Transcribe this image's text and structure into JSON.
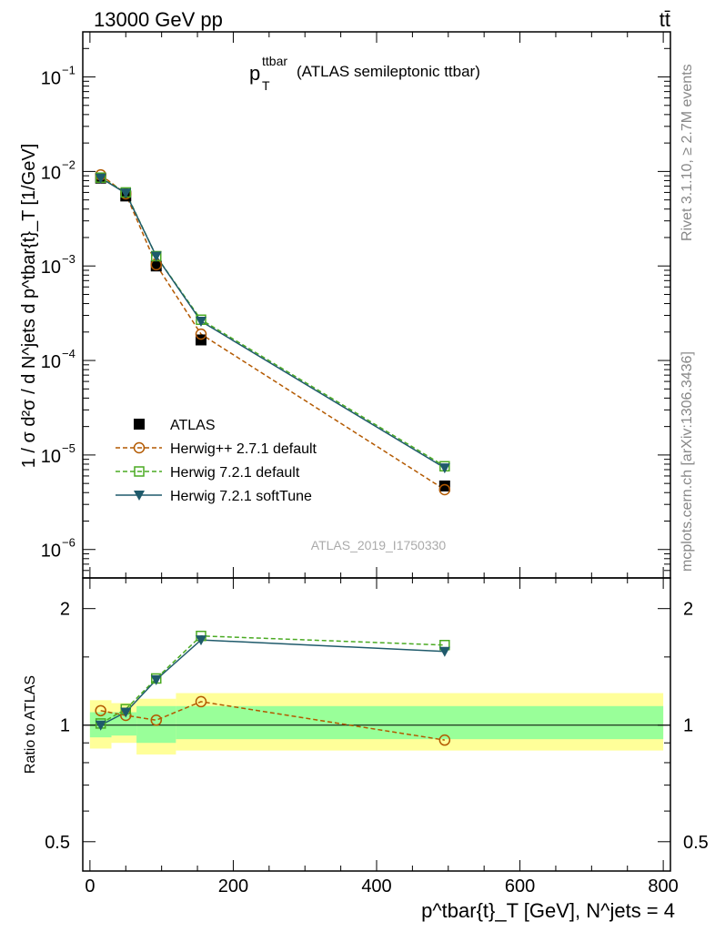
{
  "header": {
    "energy_label": "13000 GeV pp",
    "process_label": "tt̄"
  },
  "side_labels": {
    "rivet": "Rivet 3.1.10, ≥ 2.7M events",
    "mcplots": "mcplots.cern.ch [arXiv:1306.3436]"
  },
  "chart_data": [
    {
      "type": "line",
      "panel": "main",
      "title": "(ATLAS semileptonic ttbar)",
      "title_var": "p",
      "title_sup": "ttbar",
      "title_sub": "T",
      "analysis_id": "ATLAS_2019_I1750330",
      "ylabel": "1 / σ d²σ / d N^jets d p^tbar{t}_T [1/GeV]",
      "log_y": true,
      "ylim": [
        5e-07,
        0.3
      ],
      "xlim": [
        -10,
        810
      ],
      "x_ticks": [
        0,
        200,
        400,
        600,
        800
      ],
      "y_ticks": [
        1e-06,
        1e-05,
        0.0001,
        0.001,
        0.01,
        0.1
      ],
      "y_tick_labels": [
        {
          "base": "10",
          "exp": "−6"
        },
        {
          "base": "10",
          "exp": "−5"
        },
        {
          "base": "10",
          "exp": "−4"
        },
        {
          "base": "10",
          "exp": "−3"
        },
        {
          "base": "10",
          "exp": "−2"
        },
        {
          "base": "10",
          "exp": "−1"
        }
      ],
      "legend_position": "lower-left",
      "x": [
        15,
        50,
        92.5,
        155,
        495
      ],
      "bin_edges": [
        0,
        30,
        65,
        120,
        800
      ],
      "series": [
        {
          "name": "ATLAS",
          "values": [
            0.0085,
            0.0055,
            0.001,
            0.000165,
            4.7e-06
          ],
          "color": "#000000",
          "marker": "filled-square",
          "line": "none"
        },
        {
          "name": "Herwig++ 2.7.1 default",
          "values": [
            0.0092,
            0.0058,
            0.00103,
            0.00019,
            4.3e-06
          ],
          "color": "#b35900",
          "marker": "open-circle",
          "line": "dashed"
        },
        {
          "name": "Herwig 7.2.1 default",
          "values": [
            0.0086,
            0.006,
            0.00127,
            0.00027,
            7.6e-06
          ],
          "color": "#4aaa22",
          "marker": "open-square",
          "line": "dashed"
        },
        {
          "name": "Herwig 7.2.1 softTune",
          "values": [
            0.0085,
            0.0059,
            0.00127,
            0.00026,
            7.3e-06
          ],
          "color": "#1f5a6b",
          "marker": "filled-triangle-down",
          "line": "solid"
        }
      ]
    },
    {
      "type": "line",
      "panel": "ratio",
      "ylabel": "Ratio to ATLAS",
      "xlabel": "p^tbar{t}_T [GeV], N^jets = 4",
      "log_y": true,
      "ylim": [
        0.42,
        2.4
      ],
      "xlim": [
        -10,
        810
      ],
      "x_ticks": [
        0,
        200,
        400,
        600,
        800
      ],
      "x_tick_labels": [
        "0",
        "200",
        "400",
        "600",
        "800"
      ],
      "y_ticks": [
        0.5,
        1,
        2
      ],
      "y_tick_labels": [
        "0.5",
        "1",
        "2"
      ],
      "x": [
        15,
        50,
        92.5,
        155,
        495
      ],
      "uncertainty_bands": {
        "bin_edges": [
          0,
          30,
          65,
          120,
          800
        ],
        "stat_syst_lo": [
          0.87,
          0.9,
          0.84,
          0.86,
          0.86
        ],
        "stat_syst_hi": [
          1.16,
          1.14,
          1.17,
          1.21,
          1.23
        ],
        "stat_lo": [
          0.93,
          0.94,
          0.9,
          0.92,
          0.92
        ],
        "stat_hi": [
          1.08,
          1.08,
          1.12,
          1.12,
          1.12
        ],
        "outer_color": "#ffff99",
        "inner_color": "#99ff99"
      },
      "series": [
        {
          "name": "Herwig++ 2.7.1 default",
          "values": [
            1.09,
            1.06,
            1.03,
            1.15,
            0.915
          ],
          "color": "#b35900",
          "marker": "open-circle",
          "line": "dashed"
        },
        {
          "name": "Herwig 7.2.1 default",
          "values": [
            1.01,
            1.1,
            1.32,
            1.7,
            1.61
          ],
          "color": "#4aaa22",
          "marker": "open-square",
          "line": "dashed"
        },
        {
          "name": "Herwig 7.2.1 softTune",
          "values": [
            1.0,
            1.08,
            1.31,
            1.66,
            1.55
          ],
          "color": "#1f5a6b",
          "marker": "filled-triangle-down",
          "line": "solid"
        }
      ]
    }
  ]
}
